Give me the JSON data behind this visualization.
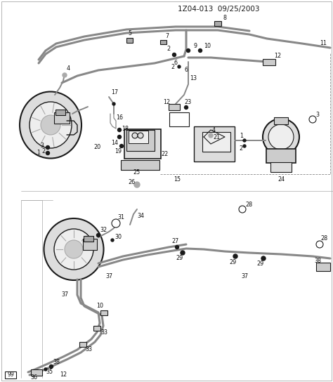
{
  "title": "1Z04-013  09/25/2003",
  "bg_color": "#ffffff",
  "line_color": "#1a1a1a",
  "label_color": "#111111",
  "fig_width": 4.74,
  "fig_height": 5.44,
  "dpi": 100,
  "page_num": "99",
  "part_num_bottom": "12",
  "gray1": "#888888",
  "gray2": "#aaaaaa",
  "gray3": "#cccccc",
  "gray4": "#dddddd",
  "gray5": "#eeeeee"
}
